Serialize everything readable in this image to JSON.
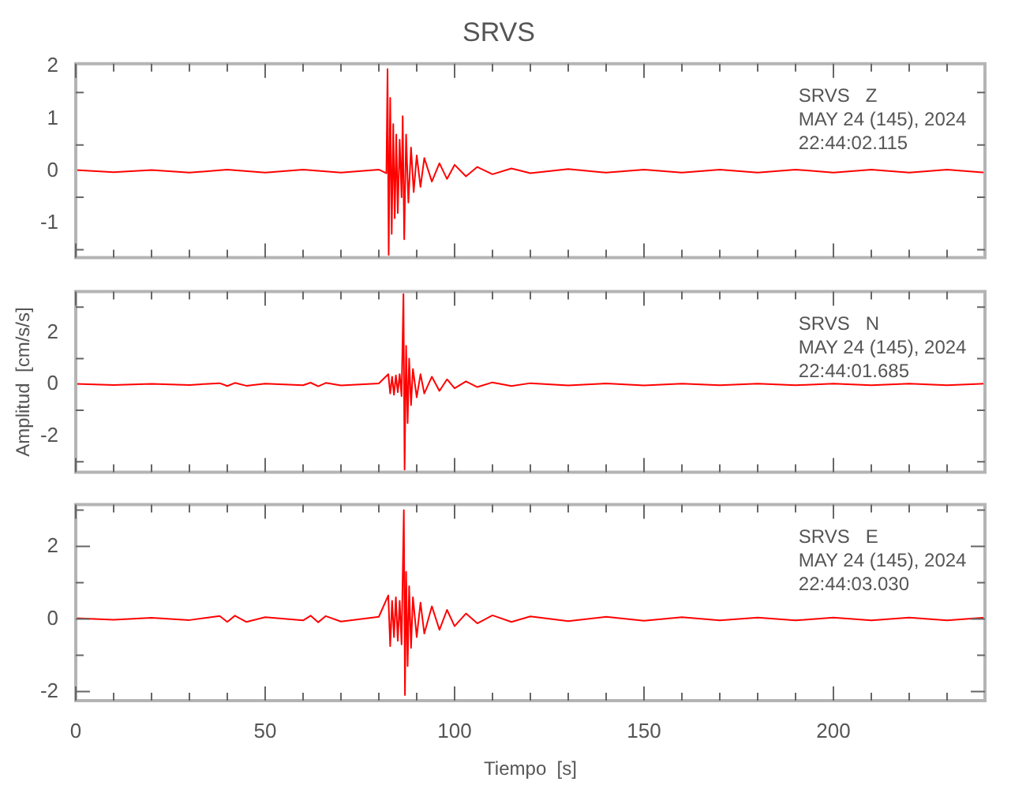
{
  "chart_data": [
    {
      "type": "line",
      "title": "SRVS",
      "tick_labels": "y",
      "x": [
        0,
        10,
        20,
        30,
        40,
        50,
        60,
        70,
        80,
        82,
        82.3,
        82.6,
        83,
        83.4,
        83.8,
        84.2,
        84.6,
        85,
        85.5,
        86,
        86.3,
        86.7,
        87.2,
        87.8,
        88.5,
        89.2,
        90,
        91,
        92,
        94,
        96,
        98,
        100,
        103,
        106,
        110,
        115,
        120,
        130,
        140,
        150,
        160,
        170,
        180,
        190,
        200,
        210,
        220,
        230,
        240
      ],
      "series": [
        {
          "color": "#ff0000",
          "values": [
            0.02,
            -0.02,
            0.02,
            -0.03,
            0.03,
            -0.03,
            0.03,
            -0.03,
            0.03,
            -0.04,
            1.95,
            -1.6,
            1.4,
            -1.2,
            0.9,
            -0.9,
            0.7,
            -0.8,
            0.6,
            -0.5,
            1.05,
            -1.3,
            0.7,
            -0.6,
            0.45,
            -0.4,
            0.3,
            -0.3,
            0.25,
            -0.2,
            0.15,
            -0.15,
            0.12,
            -0.1,
            0.08,
            -0.06,
            0.05,
            -0.04,
            0.04,
            -0.03,
            0.03,
            -0.03,
            0.03,
            -0.03,
            0.03,
            -0.03,
            0.03,
            -0.03,
            0.03,
            -0.03
          ]
        }
      ],
      "xlim": [
        0,
        240
      ],
      "xticks": [
        0,
        {
          "value": 10,
          "label": null
        },
        {
          "value": 20,
          "label": null
        },
        {
          "value": 30,
          "label": null
        },
        {
          "value": 40,
          "label": null
        },
        50,
        {
          "value": 60,
          "label": null
        },
        {
          "value": 70,
          "label": null
        },
        {
          "value": 80,
          "label": null
        },
        {
          "value": 90,
          "label": null
        },
        100,
        {
          "value": 110,
          "label": null
        },
        {
          "value": 120,
          "label": null
        },
        {
          "value": 130,
          "label": null
        },
        {
          "value": 140,
          "label": null
        },
        150,
        {
          "value": 160,
          "label": null
        },
        {
          "value": 170,
          "label": null
        },
        {
          "value": 180,
          "label": null
        },
        {
          "value": 190,
          "label": null
        },
        200,
        {
          "value": 210,
          "label": null
        },
        {
          "value": 220,
          "label": null
        },
        {
          "value": 230,
          "label": null
        }
      ],
      "ylim": [
        -1.65,
        2.05
      ],
      "yticks": [
        {
          "value": -1.5,
          "label": null
        },
        -1,
        {
          "value": -0.5,
          "label": null
        },
        0,
        {
          "value": 0.5,
          "label": null
        },
        1,
        {
          "value": 1.5,
          "label": null
        },
        2
      ],
      "annotations": [
        "SRVS   Z",
        "MAY 24 (145), 2024",
        "22:44:02.115"
      ]
    },
    {
      "type": "line",
      "ylabel": "Amplitud  [cm/s/s]",
      "tick_labels": "y",
      "x": [
        0,
        10,
        20,
        30,
        38,
        40,
        42,
        45,
        50,
        60,
        62,
        64,
        66,
        70,
        80,
        82.5,
        83,
        83.5,
        84,
        84.5,
        85,
        85.5,
        86,
        86.5,
        86.8,
        87.2,
        87.6,
        88,
        88.5,
        89,
        90,
        91,
        92,
        94,
        96,
        98,
        100,
        103,
        106,
        110,
        115,
        120,
        130,
        140,
        150,
        160,
        170,
        180,
        190,
        200,
        210,
        220,
        230,
        240
      ],
      "series": [
        {
          "color": "#ff0000",
          "values": [
            0.02,
            -0.02,
            0.02,
            -0.02,
            0.05,
            -0.06,
            0.06,
            -0.05,
            0.03,
            -0.03,
            0.07,
            -0.07,
            0.06,
            -0.04,
            0.04,
            0.4,
            -0.35,
            0.3,
            -0.4,
            0.35,
            -0.3,
            0.4,
            -0.45,
            3.5,
            -3.3,
            1.5,
            -1.5,
            1.0,
            -0.8,
            0.6,
            -0.5,
            0.4,
            -0.35,
            0.3,
            -0.25,
            0.2,
            -0.15,
            0.12,
            -0.1,
            0.08,
            -0.06,
            0.05,
            -0.04,
            0.04,
            -0.04,
            0.03,
            -0.03,
            0.03,
            -0.03,
            0.03,
            -0.03,
            0.03,
            -0.03,
            0.03
          ]
        }
      ],
      "xlim": [
        0,
        240
      ],
      "xticks": [
        0,
        {
          "value": 10,
          "label": null
        },
        {
          "value": 20,
          "label": null
        },
        {
          "value": 30,
          "label": null
        },
        {
          "value": 40,
          "label": null
        },
        50,
        {
          "value": 60,
          "label": null
        },
        {
          "value": 70,
          "label": null
        },
        {
          "value": 80,
          "label": null
        },
        {
          "value": 90,
          "label": null
        },
        100,
        {
          "value": 110,
          "label": null
        },
        {
          "value": 120,
          "label": null
        },
        {
          "value": 130,
          "label": null
        },
        {
          "value": 140,
          "label": null
        },
        150,
        {
          "value": 160,
          "label": null
        },
        {
          "value": 170,
          "label": null
        },
        {
          "value": 180,
          "label": null
        },
        {
          "value": 190,
          "label": null
        },
        200,
        {
          "value": 210,
          "label": null
        },
        {
          "value": 220,
          "label": null
        },
        {
          "value": 230,
          "label": null
        }
      ],
      "ylim": [
        -3.4,
        3.6
      ],
      "yticks": [
        {
          "value": -3,
          "label": null
        },
        -2,
        {
          "value": -1,
          "label": null
        },
        0,
        {
          "value": 1,
          "label": null
        },
        2,
        {
          "value": 3,
          "label": null
        }
      ],
      "annotations": [
        "SRVS   N",
        "MAY 24 (145), 2024",
        "22:44:01.685"
      ]
    },
    {
      "type": "line",
      "xlabel": "Tiempo  [s]",
      "x": [
        0,
        10,
        20,
        30,
        38,
        40,
        42,
        45,
        50,
        60,
        62,
        64,
        66,
        70,
        80,
        82.5,
        83,
        83.5,
        84,
        84.5,
        85,
        85.5,
        86,
        86.6,
        86.9,
        87.2,
        87.6,
        88,
        88.5,
        89,
        90,
        91,
        92,
        94,
        96,
        98,
        100,
        103,
        106,
        110,
        115,
        120,
        130,
        140,
        150,
        160,
        170,
        180,
        190,
        200,
        210,
        220,
        230,
        240
      ],
      "series": [
        {
          "color": "#ff0000",
          "values": [
            0.02,
            -0.02,
            0.03,
            -0.03,
            0.08,
            -0.08,
            0.09,
            -0.08,
            0.05,
            -0.04,
            0.09,
            -0.09,
            0.08,
            -0.07,
            0.06,
            0.65,
            -0.75,
            0.5,
            -0.5,
            0.6,
            -0.6,
            0.5,
            -0.7,
            3.0,
            -2.1,
            1.3,
            -1.3,
            0.9,
            -0.8,
            0.6,
            -0.5,
            0.45,
            -0.4,
            0.35,
            -0.3,
            0.25,
            -0.2,
            0.15,
            -0.12,
            0.1,
            -0.08,
            0.07,
            -0.06,
            0.06,
            -0.05,
            0.05,
            -0.04,
            0.04,
            -0.04,
            0.04,
            -0.04,
            0.04,
            -0.04,
            0.04
          ]
        }
      ],
      "xlim": [
        0,
        240
      ],
      "xticks": [
        0,
        {
          "value": 10,
          "label": null
        },
        {
          "value": 20,
          "label": null
        },
        {
          "value": 30,
          "label": null
        },
        {
          "value": 40,
          "label": null
        },
        50,
        {
          "value": 60,
          "label": null
        },
        {
          "value": 70,
          "label": null
        },
        {
          "value": 80,
          "label": null
        },
        {
          "value": 90,
          "label": null
        },
        100,
        {
          "value": 110,
          "label": null
        },
        {
          "value": 120,
          "label": null
        },
        {
          "value": 130,
          "label": null
        },
        {
          "value": 140,
          "label": null
        },
        150,
        {
          "value": 160,
          "label": null
        },
        {
          "value": 170,
          "label": null
        },
        {
          "value": 180,
          "label": null
        },
        {
          "value": 190,
          "label": null
        },
        200,
        {
          "value": 210,
          "label": null
        },
        {
          "value": 220,
          "label": null
        },
        {
          "value": 230,
          "label": null
        }
      ],
      "ylim": [
        -2.25,
        3.15
      ],
      "yticks": [
        -2,
        {
          "value": -1,
          "label": null
        },
        0,
        {
          "value": 1,
          "label": null
        },
        2,
        {
          "value": 3,
          "label": null
        }
      ],
      "annotations": [
        "SRVS   E",
        "MAY 24 (145), 2024",
        "22:44:03.030"
      ]
    }
  ]
}
